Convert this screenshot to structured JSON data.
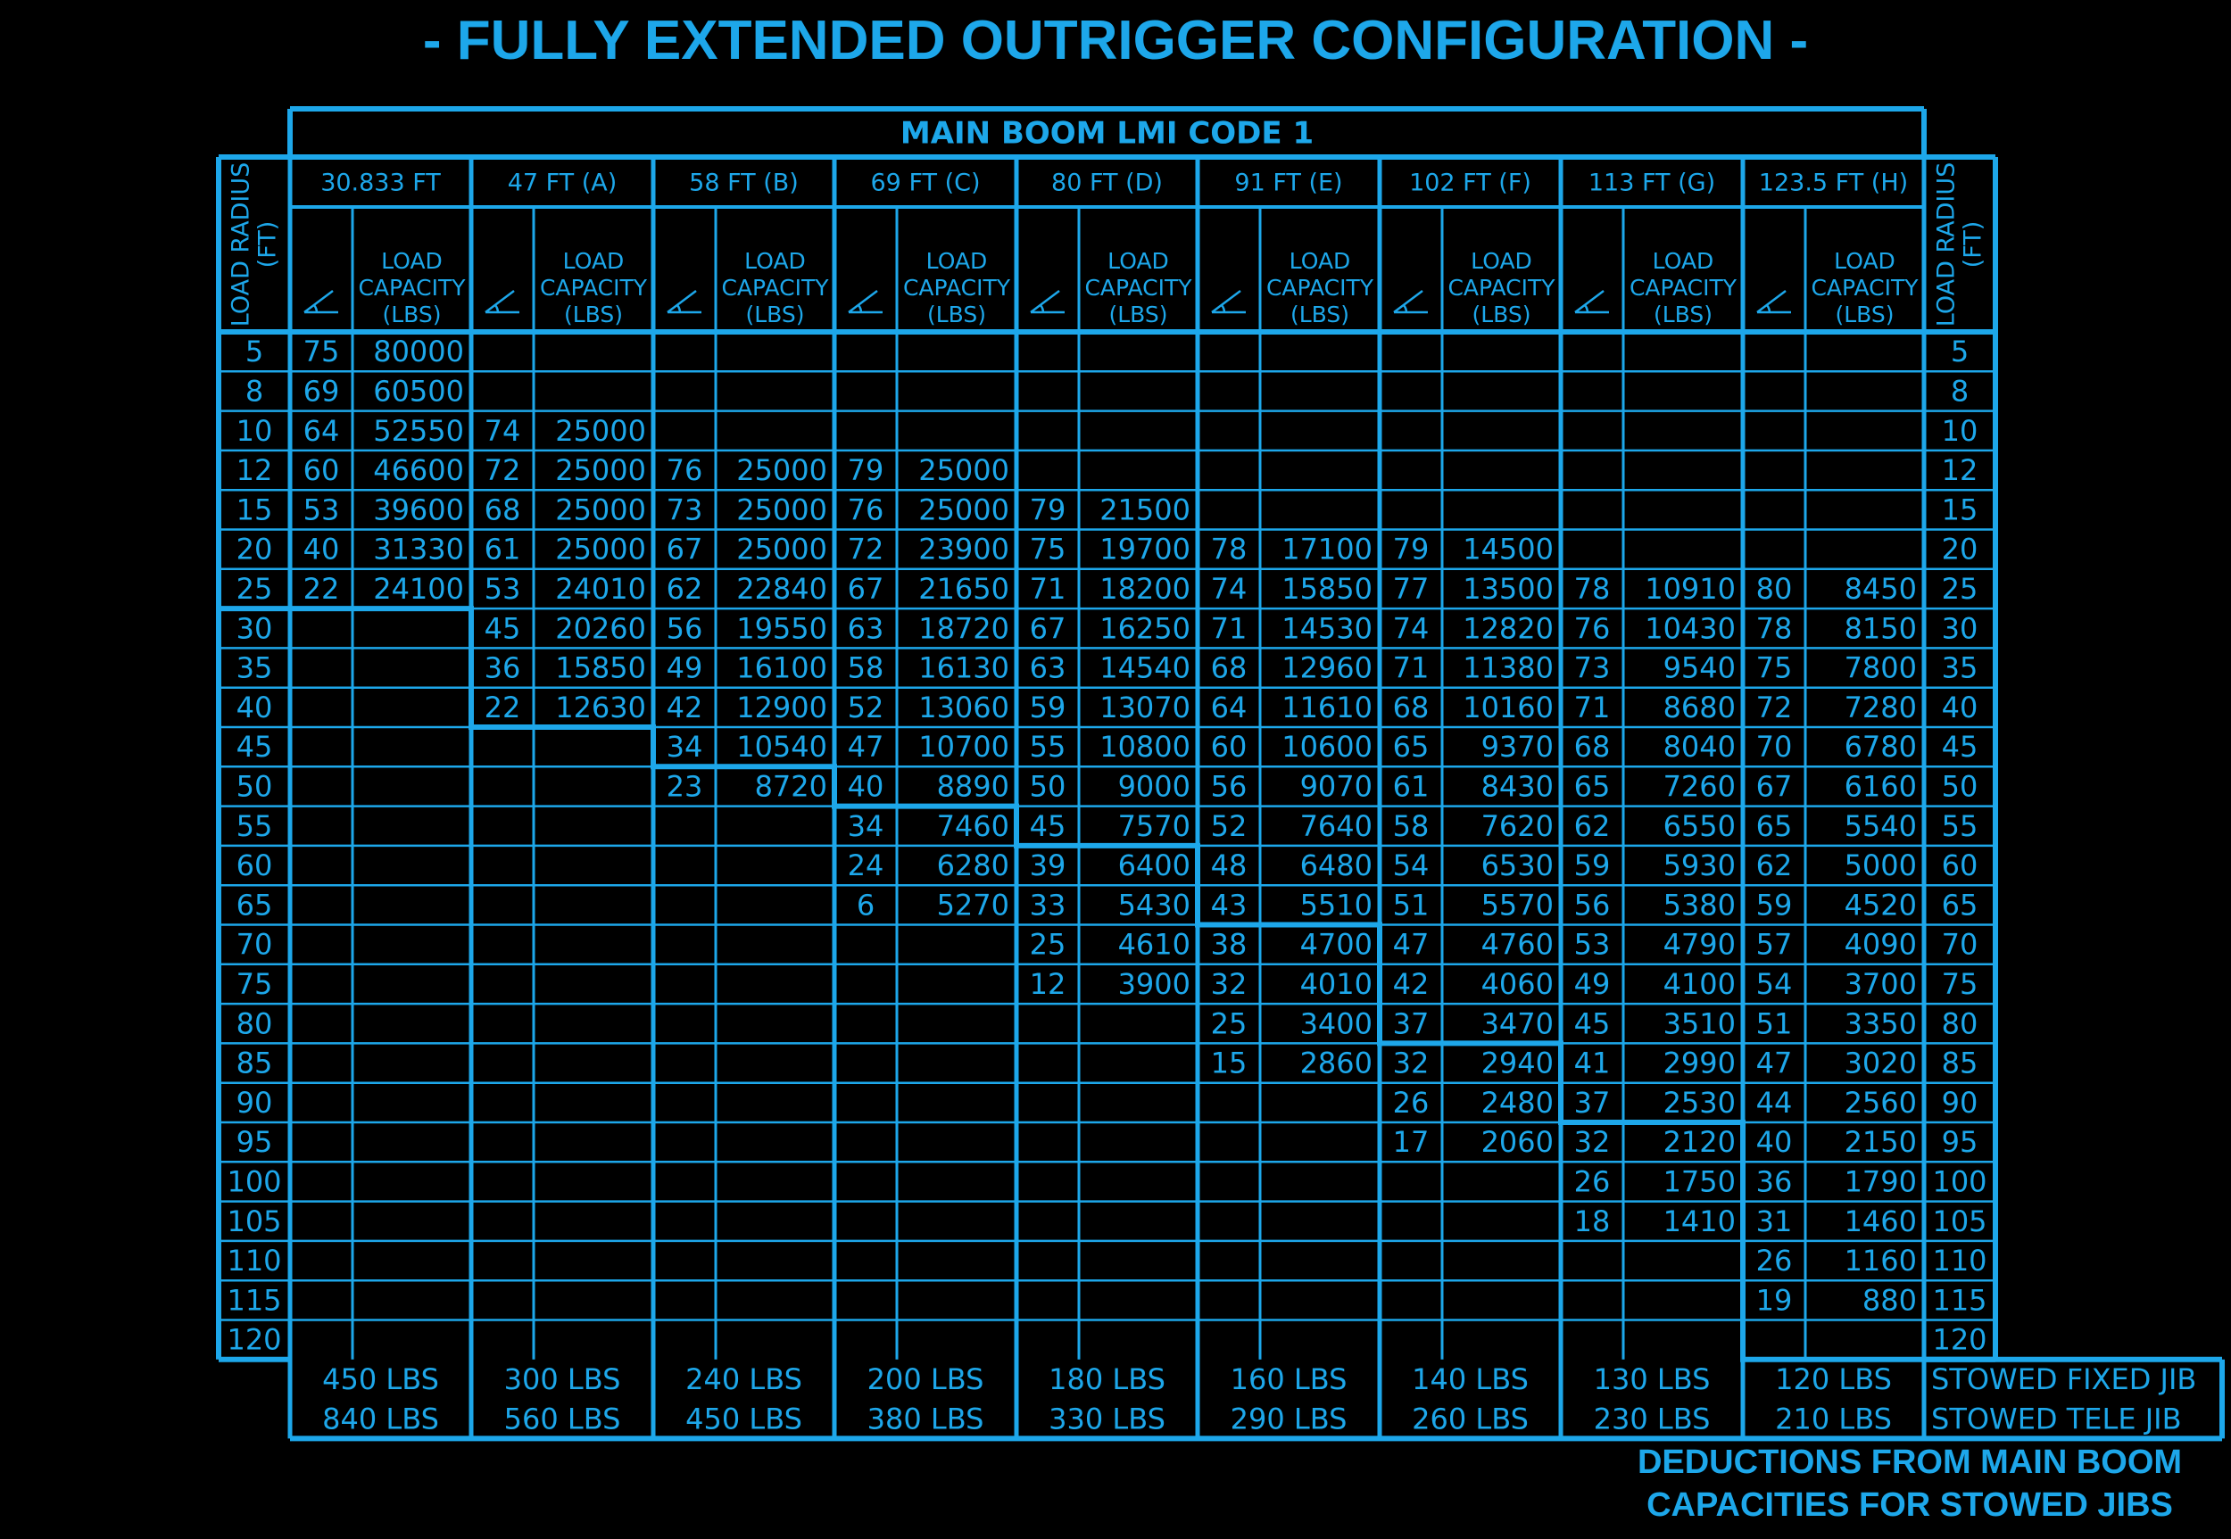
{
  "title": "- FULLY EXTENDED OUTRIGGER CONFIGURATION -",
  "table_title": "MAIN BOOM LMI CODE 1",
  "radius_header": [
    "LOAD RADIUS",
    "(FT)"
  ],
  "capacity_header": [
    "LOAD",
    "CAPACITY",
    "(LBS)"
  ],
  "angle_symbol": "angle-icon",
  "color": "#1da7ea",
  "boom_lengths": [
    "30.833 FT",
    "47 FT (A)",
    "58 FT (B)",
    "69 FT (C)",
    "80 FT (D)",
    "91 FT (E)",
    "102 FT (F)",
    "113 FT (G)",
    "123.5 FT (H)"
  ],
  "radii": [
    "5",
    "8",
    "10",
    "12",
    "15",
    "20",
    "25",
    "30",
    "35",
    "40",
    "45",
    "50",
    "55",
    "60",
    "65",
    "70",
    "75",
    "80",
    "85",
    "90",
    "95",
    "100",
    "105",
    "110",
    "115",
    "120"
  ],
  "rows": [
    [
      [
        "75",
        "80000"
      ],
      [
        "",
        ""
      ],
      [
        "",
        ""
      ],
      [
        "",
        ""
      ],
      [
        "",
        ""
      ],
      [
        "",
        ""
      ],
      [
        "",
        ""
      ],
      [
        "",
        ""
      ],
      [
        "",
        ""
      ]
    ],
    [
      [
        "69",
        "60500"
      ],
      [
        "",
        ""
      ],
      [
        "",
        ""
      ],
      [
        "",
        ""
      ],
      [
        "",
        ""
      ],
      [
        "",
        ""
      ],
      [
        "",
        ""
      ],
      [
        "",
        ""
      ],
      [
        "",
        ""
      ]
    ],
    [
      [
        "64",
        "52550"
      ],
      [
        "74",
        "25000"
      ],
      [
        "",
        ""
      ],
      [
        "",
        ""
      ],
      [
        "",
        ""
      ],
      [
        "",
        ""
      ],
      [
        "",
        ""
      ],
      [
        "",
        ""
      ],
      [
        "",
        ""
      ]
    ],
    [
      [
        "60",
        "46600"
      ],
      [
        "72",
        "25000"
      ],
      [
        "76",
        "25000"
      ],
      [
        "79",
        "25000"
      ],
      [
        "",
        ""
      ],
      [
        "",
        ""
      ],
      [
        "",
        ""
      ],
      [
        "",
        ""
      ],
      [
        "",
        ""
      ]
    ],
    [
      [
        "53",
        "39600"
      ],
      [
        "68",
        "25000"
      ],
      [
        "73",
        "25000"
      ],
      [
        "76",
        "25000"
      ],
      [
        "79",
        "21500"
      ],
      [
        "",
        ""
      ],
      [
        "",
        ""
      ],
      [
        "",
        ""
      ],
      [
        "",
        ""
      ]
    ],
    [
      [
        "40",
        "31330"
      ],
      [
        "61",
        "25000"
      ],
      [
        "67",
        "25000"
      ],
      [
        "72",
        "23900"
      ],
      [
        "75",
        "19700"
      ],
      [
        "78",
        "17100"
      ],
      [
        "79",
        "14500"
      ],
      [
        "",
        ""
      ],
      [
        "",
        ""
      ]
    ],
    [
      [
        "22",
        "24100"
      ],
      [
        "53",
        "24010"
      ],
      [
        "62",
        "22840"
      ],
      [
        "67",
        "21650"
      ],
      [
        "71",
        "18200"
      ],
      [
        "74",
        "15850"
      ],
      [
        "77",
        "13500"
      ],
      [
        "78",
        "10910"
      ],
      [
        "80",
        "8450"
      ]
    ],
    [
      [
        "",
        ""
      ],
      [
        "45",
        "20260"
      ],
      [
        "56",
        "19550"
      ],
      [
        "63",
        "18720"
      ],
      [
        "67",
        "16250"
      ],
      [
        "71",
        "14530"
      ],
      [
        "74",
        "12820"
      ],
      [
        "76",
        "10430"
      ],
      [
        "78",
        "8150"
      ]
    ],
    [
      [
        "",
        ""
      ],
      [
        "36",
        "15850"
      ],
      [
        "49",
        "16100"
      ],
      [
        "58",
        "16130"
      ],
      [
        "63",
        "14540"
      ],
      [
        "68",
        "12960"
      ],
      [
        "71",
        "11380"
      ],
      [
        "73",
        "9540"
      ],
      [
        "75",
        "7800"
      ]
    ],
    [
      [
        "",
        ""
      ],
      [
        "22",
        "12630"
      ],
      [
        "42",
        "12900"
      ],
      [
        "52",
        "13060"
      ],
      [
        "59",
        "13070"
      ],
      [
        "64",
        "11610"
      ],
      [
        "68",
        "10160"
      ],
      [
        "71",
        "8680"
      ],
      [
        "72",
        "7280"
      ]
    ],
    [
      [
        "",
        ""
      ],
      [
        "",
        ""
      ],
      [
        "34",
        "10540"
      ],
      [
        "47",
        "10700"
      ],
      [
        "55",
        "10800"
      ],
      [
        "60",
        "10600"
      ],
      [
        "65",
        "9370"
      ],
      [
        "68",
        "8040"
      ],
      [
        "70",
        "6780"
      ]
    ],
    [
      [
        "",
        ""
      ],
      [
        "",
        ""
      ],
      [
        "23",
        "8720"
      ],
      [
        "40",
        "8890"
      ],
      [
        "50",
        "9000"
      ],
      [
        "56",
        "9070"
      ],
      [
        "61",
        "8430"
      ],
      [
        "65",
        "7260"
      ],
      [
        "67",
        "6160"
      ]
    ],
    [
      [
        "",
        ""
      ],
      [
        "",
        ""
      ],
      [
        "",
        ""
      ],
      [
        "34",
        "7460"
      ],
      [
        "45",
        "7570"
      ],
      [
        "52",
        "7640"
      ],
      [
        "58",
        "7620"
      ],
      [
        "62",
        "6550"
      ],
      [
        "65",
        "5540"
      ]
    ],
    [
      [
        "",
        ""
      ],
      [
        "",
        ""
      ],
      [
        "",
        ""
      ],
      [
        "24",
        "6280"
      ],
      [
        "39",
        "6400"
      ],
      [
        "48",
        "6480"
      ],
      [
        "54",
        "6530"
      ],
      [
        "59",
        "5930"
      ],
      [
        "62",
        "5000"
      ]
    ],
    [
      [
        "",
        ""
      ],
      [
        "",
        ""
      ],
      [
        "",
        ""
      ],
      [
        "6",
        "5270"
      ],
      [
        "33",
        "5430"
      ],
      [
        "43",
        "5510"
      ],
      [
        "51",
        "5570"
      ],
      [
        "56",
        "5380"
      ],
      [
        "59",
        "4520"
      ]
    ],
    [
      [
        "",
        ""
      ],
      [
        "",
        ""
      ],
      [
        "",
        ""
      ],
      [
        "",
        ""
      ],
      [
        "25",
        "4610"
      ],
      [
        "38",
        "4700"
      ],
      [
        "47",
        "4760"
      ],
      [
        "53",
        "4790"
      ],
      [
        "57",
        "4090"
      ]
    ],
    [
      [
        "",
        ""
      ],
      [
        "",
        ""
      ],
      [
        "",
        ""
      ],
      [
        "",
        ""
      ],
      [
        "12",
        "3900"
      ],
      [
        "32",
        "4010"
      ],
      [
        "42",
        "4060"
      ],
      [
        "49",
        "4100"
      ],
      [
        "54",
        "3700"
      ]
    ],
    [
      [
        "",
        ""
      ],
      [
        "",
        ""
      ],
      [
        "",
        ""
      ],
      [
        "",
        ""
      ],
      [
        "",
        ""
      ],
      [
        "25",
        "3400"
      ],
      [
        "37",
        "3470"
      ],
      [
        "45",
        "3510"
      ],
      [
        "51",
        "3350"
      ]
    ],
    [
      [
        "",
        ""
      ],
      [
        "",
        ""
      ],
      [
        "",
        ""
      ],
      [
        "",
        ""
      ],
      [
        "",
        ""
      ],
      [
        "15",
        "2860"
      ],
      [
        "32",
        "2940"
      ],
      [
        "41",
        "2990"
      ],
      [
        "47",
        "3020"
      ]
    ],
    [
      [
        "",
        ""
      ],
      [
        "",
        ""
      ],
      [
        "",
        ""
      ],
      [
        "",
        ""
      ],
      [
        "",
        ""
      ],
      [
        "",
        ""
      ],
      [
        "26",
        "2480"
      ],
      [
        "37",
        "2530"
      ],
      [
        "44",
        "2560"
      ]
    ],
    [
      [
        "",
        ""
      ],
      [
        "",
        ""
      ],
      [
        "",
        ""
      ],
      [
        "",
        ""
      ],
      [
        "",
        ""
      ],
      [
        "",
        ""
      ],
      [
        "17",
        "2060"
      ],
      [
        "32",
        "2120"
      ],
      [
        "40",
        "2150"
      ]
    ],
    [
      [
        "",
        ""
      ],
      [
        "",
        ""
      ],
      [
        "",
        ""
      ],
      [
        "",
        ""
      ],
      [
        "",
        ""
      ],
      [
        "",
        ""
      ],
      [
        "",
        ""
      ],
      [
        "26",
        "1750"
      ],
      [
        "36",
        "1790"
      ]
    ],
    [
      [
        "",
        ""
      ],
      [
        "",
        ""
      ],
      [
        "",
        ""
      ],
      [
        "",
        ""
      ],
      [
        "",
        ""
      ],
      [
        "",
        ""
      ],
      [
        "",
        ""
      ],
      [
        "18",
        "1410"
      ],
      [
        "31",
        "1460"
      ]
    ],
    [
      [
        "",
        ""
      ],
      [
        "",
        ""
      ],
      [
        "",
        ""
      ],
      [
        "",
        ""
      ],
      [
        "",
        ""
      ],
      [
        "",
        ""
      ],
      [
        "",
        ""
      ],
      [
        "",
        ""
      ],
      [
        "26",
        "1160"
      ]
    ],
    [
      [
        "",
        ""
      ],
      [
        "",
        ""
      ],
      [
        "",
        ""
      ],
      [
        "",
        ""
      ],
      [
        "",
        ""
      ],
      [
        "",
        ""
      ],
      [
        "",
        ""
      ],
      [
        "",
        ""
      ],
      [
        "19",
        "880"
      ]
    ],
    [
      [
        "",
        ""
      ],
      [
        "",
        ""
      ],
      [
        "",
        ""
      ],
      [
        "",
        ""
      ],
      [
        "",
        ""
      ],
      [
        "",
        ""
      ],
      [
        "",
        ""
      ],
      [
        "",
        ""
      ],
      [
        "",
        ""
      ]
    ]
  ],
  "structural_boundary_last_row": [
    6,
    9,
    10,
    11,
    12,
    14,
    17,
    19,
    25
  ],
  "deductions": {
    "fixed_jib": [
      "450 LBS",
      "300 LBS",
      "240 LBS",
      "200 LBS",
      "180 LBS",
      "160 LBS",
      "140 LBS",
      "130 LBS",
      "120 LBS"
    ],
    "tele_jib": [
      "840 LBS",
      "560 LBS",
      "450 LBS",
      "380 LBS",
      "330 LBS",
      "290 LBS",
      "260 LBS",
      "230 LBS",
      "210 LBS"
    ],
    "fixed_label": "STOWED FIXED JIB",
    "tele_label": "STOWED TELE JIB"
  },
  "footer_note": [
    "DEDUCTIONS FROM MAIN BOOM",
    "CAPACITIES FOR STOWED JIBS"
  ]
}
